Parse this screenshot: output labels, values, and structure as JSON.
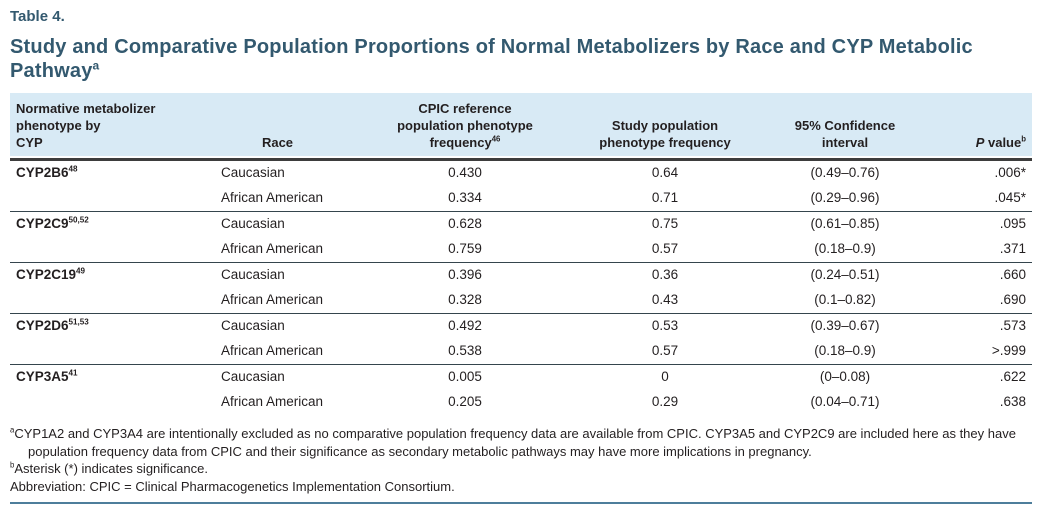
{
  "colors": {
    "title_teal": "#33596F",
    "header_bg": "#D8EAF5",
    "body_text": "#231F20",
    "heavy_rule": "#3D3D3D",
    "group_rule": "#35454D",
    "bottom_rule": "#4E7E9B"
  },
  "header": {
    "table_number": "Table 4.",
    "title": "Study and Comparative Population Proportions of Normal Metabolizers by Race and CYP Metabolic Pathway",
    "title_footnote_marker": "a"
  },
  "table": {
    "columns": [
      {
        "label": "Normative metabolizer\nphenotype by\nCYP"
      },
      {
        "label": "Race"
      },
      {
        "label": "CPIC reference\npopulation phenotype\nfrequency",
        "superscript": "46"
      },
      {
        "label": "Study population\nphenotype frequency"
      },
      {
        "label": "95% Confidence\ninterval"
      },
      {
        "label_italic": "P",
        "label_rest": "value",
        "superscript": "b"
      }
    ],
    "groups": [
      {
        "gene": "CYP2B6",
        "reference_superscript": "48",
        "rows": [
          {
            "race": "Caucasian",
            "cpic_frequency": "0.430",
            "study_frequency": "0.64",
            "confidence_interval": "(0.49–0.76)",
            "p_value": ".006*"
          },
          {
            "race": "African American",
            "cpic_frequency": "0.334",
            "study_frequency": "0.71",
            "confidence_interval": "(0.29–0.96)",
            "p_value": ".045*"
          }
        ]
      },
      {
        "gene": "CYP2C9",
        "reference_superscript": "50,52",
        "rows": [
          {
            "race": "Caucasian",
            "cpic_frequency": "0.628",
            "study_frequency": "0.75",
            "confidence_interval": "(0.61–0.85)",
            "p_value": ".095"
          },
          {
            "race": "African American",
            "cpic_frequency": "0.759",
            "study_frequency": "0.57",
            "confidence_interval": "(0.18–0.9)",
            "p_value": ".371"
          }
        ]
      },
      {
        "gene": "CYP2C19",
        "reference_superscript": "49",
        "rows": [
          {
            "race": "Caucasian",
            "cpic_frequency": "0.396",
            "study_frequency": "0.36",
            "confidence_interval": "(0.24–0.51)",
            "p_value": ".660"
          },
          {
            "race": "African American",
            "cpic_frequency": "0.328",
            "study_frequency": "0.43",
            "confidence_interval": "(0.1–0.82)",
            "p_value": ".690"
          }
        ]
      },
      {
        "gene": "CYP2D6",
        "reference_superscript": "51,53",
        "rows": [
          {
            "race": "Caucasian",
            "cpic_frequency": "0.492",
            "study_frequency": "0.53",
            "confidence_interval": "(0.39–0.67)",
            "p_value": ".573"
          },
          {
            "race": "African American",
            "cpic_frequency": "0.538",
            "study_frequency": "0.57",
            "confidence_interval": "(0.18–0.9)",
            "p_value": ">.999"
          }
        ]
      },
      {
        "gene": "CYP3A5",
        "reference_superscript": "41",
        "rows": [
          {
            "race": "Caucasian",
            "cpic_frequency": "0.005",
            "study_frequency": "0",
            "confidence_interval": "(0–0.08)",
            "p_value": ".622"
          },
          {
            "race": "African American",
            "cpic_frequency": "0.205",
            "study_frequency": "0.29",
            "confidence_interval": "(0.04–0.71)",
            "p_value": ".638"
          }
        ]
      }
    ]
  },
  "footnotes": [
    {
      "marker": "a",
      "text": "CYP1A2 and CYP3A4 are intentionally excluded as no comparative population frequency data are available from CPIC. CYP3A5 and CYP2C9 are included here as they have population frequency data from CPIC and their significance as secondary metabolic pathways may have more implications in pregnancy."
    },
    {
      "marker": "b",
      "text": "Asterisk (*) indicates significance."
    },
    {
      "text": "Abbreviation: CPIC = Clinical Pharmacogenetics Implementation Consortium."
    }
  ]
}
